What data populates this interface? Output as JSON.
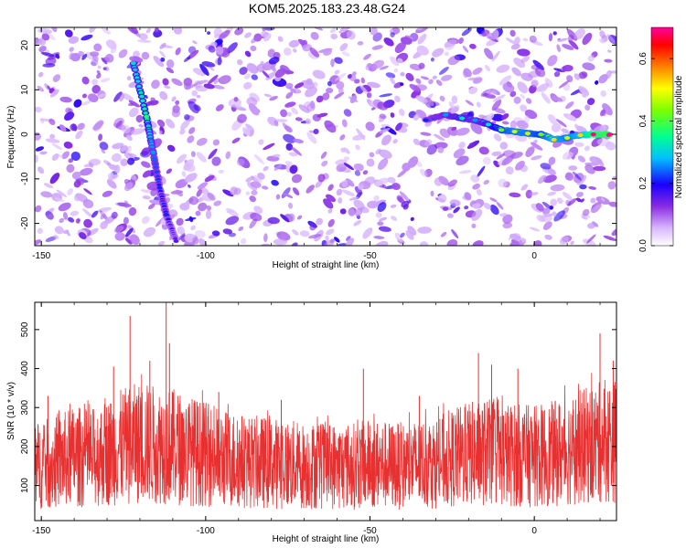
{
  "title": "KOM5.2025.183.23.48.G24",
  "chart_data": [
    {
      "type": "heatmap",
      "xlabel": "Height of straight line (km)",
      "ylabel": "Frequency (Hz)",
      "xlim": [
        -152,
        25
      ],
      "ylim": [
        -25,
        24
      ],
      "x_ticks": [
        "-150",
        "-100",
        "-50",
        "0"
      ],
      "x_tick_values": [
        -150,
        -100,
        -50,
        0
      ],
      "y_ticks": [
        "20",
        "10",
        "0",
        "-10",
        "-20"
      ],
      "y_tick_values": [
        20,
        10,
        0,
        -10,
        -20
      ],
      "colorbar": {
        "label": "Normalized spectral amplitude",
        "range": [
          0,
          0.7
        ],
        "ticks": [
          "0.0",
          "0.2",
          "0.4",
          "0.6"
        ],
        "tick_values": [
          0.0,
          0.2,
          0.4,
          0.6
        ],
        "colormap": "rainbow"
      },
      "features": {
        "diagonal_track": [
          {
            "x": -122,
            "y": 16,
            "v": 0.3
          },
          {
            "x": -118,
            "y": 4,
            "v": 0.35
          },
          {
            "x": -116,
            "y": -4,
            "v": 0.25
          },
          {
            "x": -114,
            "y": -12,
            "v": 0.2
          },
          {
            "x": -112,
            "y": -18,
            "v": 0.2
          },
          {
            "x": -109,
            "y": -24,
            "v": 0.15
          }
        ],
        "horizontal_track": [
          {
            "x": -33,
            "y": 3.2,
            "v": 0.2
          },
          {
            "x": -27,
            "y": 4.4,
            "v": 0.25
          },
          {
            "x": -22,
            "y": 3.6,
            "v": 0.3
          },
          {
            "x": -18,
            "y": 3.2,
            "v": 0.25
          },
          {
            "x": -14,
            "y": 2.2,
            "v": 0.3
          },
          {
            "x": -10,
            "y": 1.0,
            "v": 0.4
          },
          {
            "x": -6,
            "y": 0.6,
            "v": 0.45
          },
          {
            "x": -2,
            "y": 0.2,
            "v": 0.45
          },
          {
            "x": 2,
            "y": 0.0,
            "v": 0.4
          },
          {
            "x": 6,
            "y": -1.2,
            "v": 0.5
          },
          {
            "x": 10,
            "y": -0.8,
            "v": 0.45
          },
          {
            "x": 14,
            "y": -0.2,
            "v": 0.5
          },
          {
            "x": 18,
            "y": 0.0,
            "v": 0.65
          },
          {
            "x": 23,
            "y": 0.0,
            "v": 0.7
          }
        ]
      }
    },
    {
      "type": "line",
      "xlabel": "Height of straight line (km)",
      "ylabel": "SNR (10 * v/v)",
      "xlim": [
        -152,
        25
      ],
      "ylim": [
        10,
        570
      ],
      "x_ticks": [
        "-150",
        "-100",
        "-50",
        "0"
      ],
      "x_tick_values": [
        -150,
        -100,
        -50,
        0
      ],
      "y_ticks": [
        "100",
        "200",
        "300",
        "400",
        "500"
      ],
      "y_tick_values": [
        100,
        200,
        300,
        400,
        500
      ],
      "series_color": "#e83030",
      "points": [
        {
          "x": -152,
          "y": 150
        },
        {
          "x": -145,
          "y": 160
        },
        {
          "x": -140,
          "y": 175
        },
        {
          "x": -135,
          "y": 170
        },
        {
          "x": -130,
          "y": 185
        },
        {
          "x": -125,
          "y": 200
        },
        {
          "x": -120,
          "y": 210
        },
        {
          "x": -115,
          "y": 205
        },
        {
          "x": -110,
          "y": 200
        },
        {
          "x": -105,
          "y": 190
        },
        {
          "x": -100,
          "y": 180
        },
        {
          "x": -95,
          "y": 170
        },
        {
          "x": -90,
          "y": 165
        },
        {
          "x": -85,
          "y": 160
        },
        {
          "x": -80,
          "y": 158
        },
        {
          "x": -75,
          "y": 155
        },
        {
          "x": -70,
          "y": 150
        },
        {
          "x": -65,
          "y": 152
        },
        {
          "x": -60,
          "y": 150
        },
        {
          "x": -55,
          "y": 150
        },
        {
          "x": -50,
          "y": 155
        },
        {
          "x": -45,
          "y": 152
        },
        {
          "x": -40,
          "y": 150
        },
        {
          "x": -35,
          "y": 155
        },
        {
          "x": -30,
          "y": 160
        },
        {
          "x": -25,
          "y": 170
        },
        {
          "x": -20,
          "y": 180
        },
        {
          "x": -15,
          "y": 185
        },
        {
          "x": -10,
          "y": 180
        },
        {
          "x": -5,
          "y": 178
        },
        {
          "x": 0,
          "y": 175
        },
        {
          "x": 5,
          "y": 180
        },
        {
          "x": 10,
          "y": 190
        },
        {
          "x": 15,
          "y": 200
        },
        {
          "x": 20,
          "y": 210
        },
        {
          "x": 25,
          "y": 215
        }
      ],
      "peaks": [
        {
          "x": -123,
          "y": 535
        },
        {
          "x": -112,
          "y": 570
        },
        {
          "x": -111,
          "y": 465
        },
        {
          "x": -128,
          "y": 405
        },
        {
          "x": -117,
          "y": 420
        },
        {
          "x": -148,
          "y": 330
        },
        {
          "x": -96,
          "y": 340
        },
        {
          "x": -77,
          "y": 320
        },
        {
          "x": -52,
          "y": 400
        },
        {
          "x": -35,
          "y": 330
        },
        {
          "x": -17,
          "y": 440
        },
        {
          "x": -13,
          "y": 410
        },
        {
          "x": -5,
          "y": 400
        },
        {
          "x": 20,
          "y": 490
        },
        {
          "x": 24,
          "y": 420
        }
      ]
    }
  ]
}
